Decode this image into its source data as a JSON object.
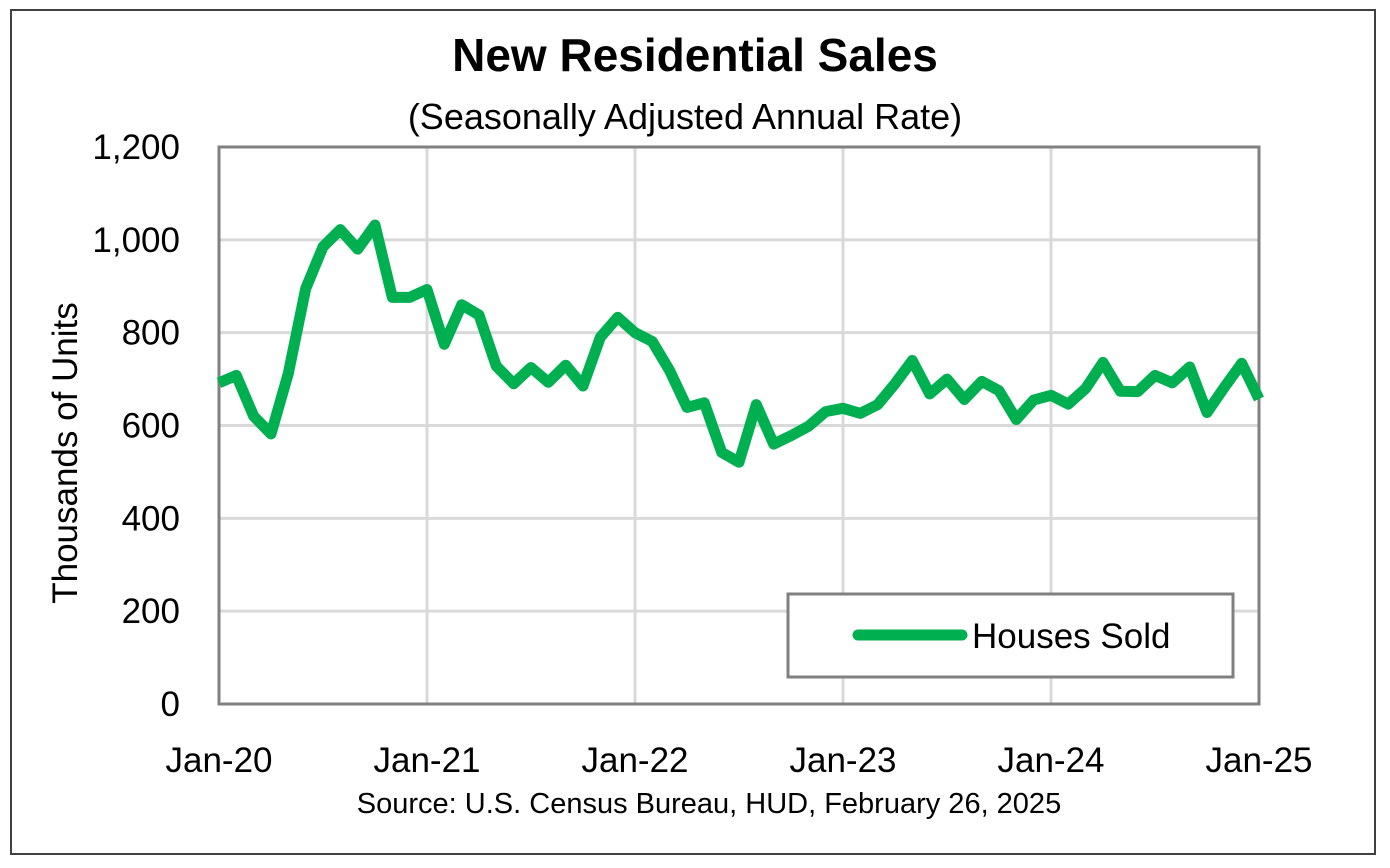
{
  "chart_data": {
    "type": "line",
    "title": "New Residential Sales",
    "subtitle": "(Seasonally Adjusted Annual Rate)",
    "ylabel": "Thousands of Units",
    "xlabel": "",
    "source": "Source:  U.S. Census Bureau, HUD, February 26, 2025",
    "ylim": [
      0,
      1200
    ],
    "yticks": [
      0,
      200,
      400,
      600,
      800,
      1000,
      1200
    ],
    "ytick_labels": [
      "0",
      "200",
      "400",
      "600",
      "800",
      "1,000",
      "1,200"
    ],
    "xticks": [
      0,
      12,
      24,
      36,
      48,
      60
    ],
    "xtick_labels": [
      "Jan-20",
      "Jan-21",
      "Jan-22",
      "Jan-23",
      "Jan-24",
      "Jan-25"
    ],
    "xlim": [
      0,
      60
    ],
    "grid": true,
    "legend_position": "bottom-right",
    "series": [
      {
        "name": "Houses Sold",
        "color": "#00B050",
        "values": [
          692,
          708,
          620,
          582,
          712,
          895,
          985,
          1022,
          980,
          1032,
          876,
          876,
          893,
          775,
          860,
          838,
          728,
          690,
          725,
          693,
          730,
          685,
          790,
          833,
          800,
          781,
          718,
          639,
          649,
          542,
          521,
          645,
          560,
          578,
          598,
          630,
          637,
          626,
          645,
          690,
          740,
          668,
          700,
          656,
          695,
          675,
          613,
          655,
          665,
          646,
          680,
          736,
          674,
          673,
          708,
          692,
          726,
          628,
          682,
          734,
          657
        ]
      }
    ]
  }
}
